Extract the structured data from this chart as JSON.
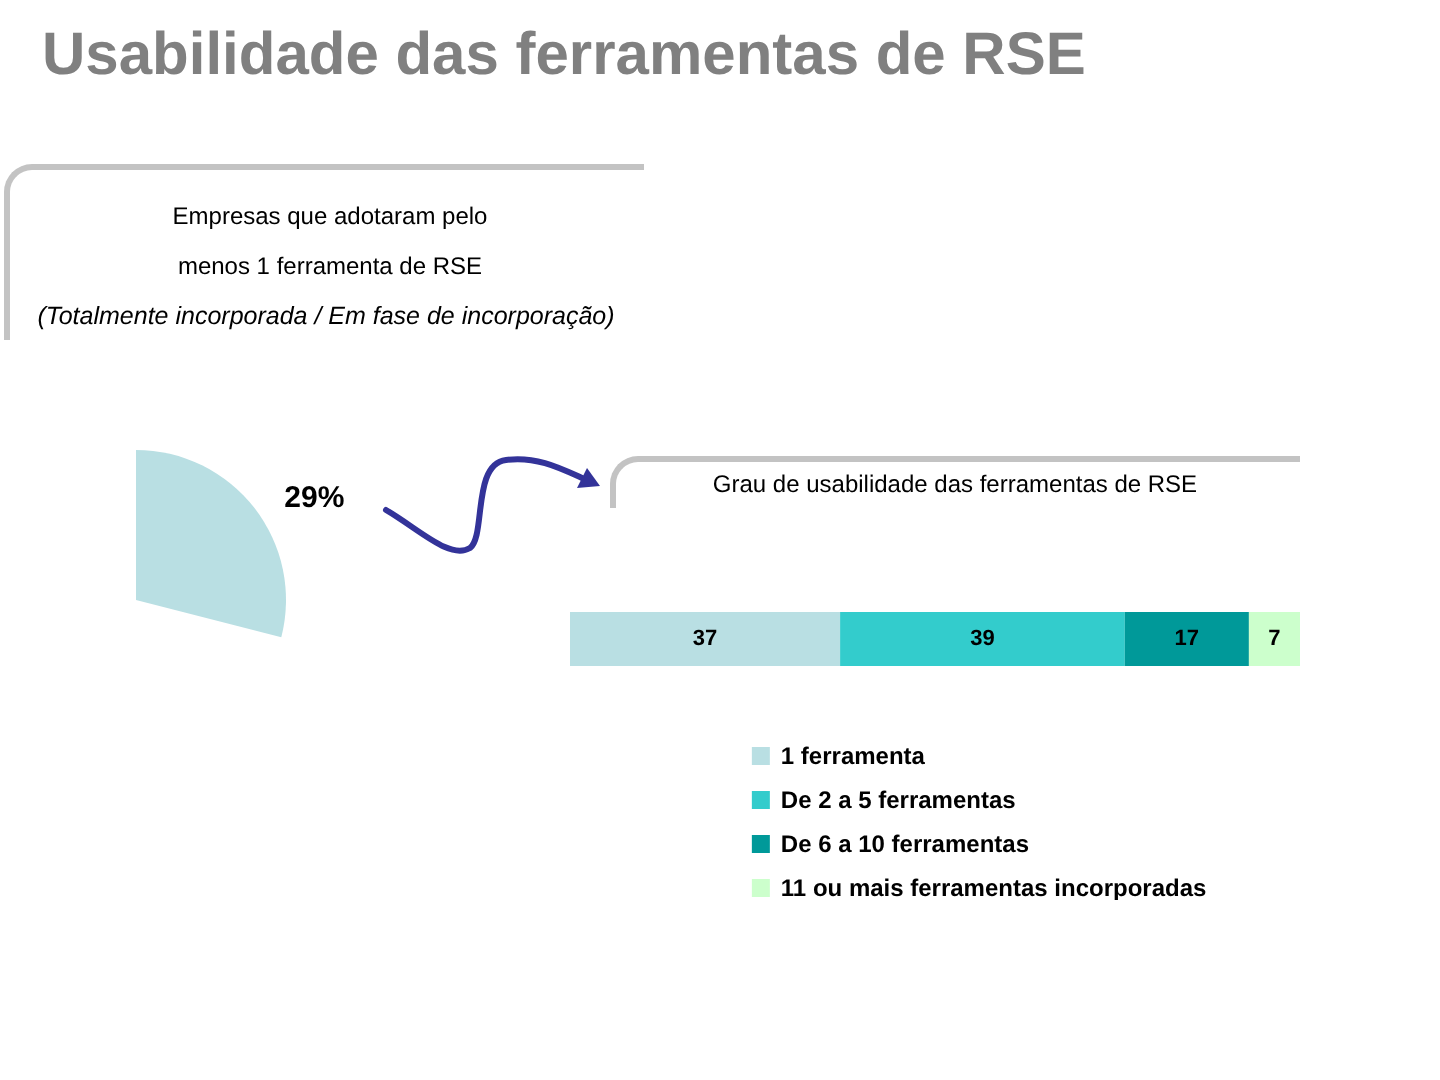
{
  "chart_data": [
    {
      "type": "pie",
      "title": "Usabilidade das ferramentas de RSE",
      "subtitle": "Empresas que adotaram pelo menos 1 ferramenta de RSE",
      "annotations": [
        "(Totalmente incorporada / Em fase de incorporação)"
      ],
      "categories": [
        null
      ],
      "values": [
        29
      ],
      "colors": [
        "#b9dfe3"
      ],
      "value_labels": [
        "29%"
      ]
    },
    {
      "type": "bar",
      "orientation": "horizontal",
      "stacked": true,
      "title": "Grau de usabilidade das ferramentas de RSE",
      "categories": [
        null
      ],
      "series": [
        {
          "name": "1 ferramenta",
          "color": "#b9dfe3",
          "values": [
            37
          ]
        },
        {
          "name": "De 2 a 5 ferramentas",
          "color": "#33cccc",
          "values": [
            39
          ]
        },
        {
          "name": "De 6 a 10 ferramentas",
          "color": "#009999",
          "values": [
            17
          ]
        },
        {
          "name": "11 ou mais ferramentas incorporadas",
          "color": "#ccffcc",
          "values": [
            7
          ]
        }
      ],
      "xlim": [
        0,
        100
      ],
      "tick_labels": false,
      "data_labels": true,
      "legend": "bottom"
    }
  ]
}
